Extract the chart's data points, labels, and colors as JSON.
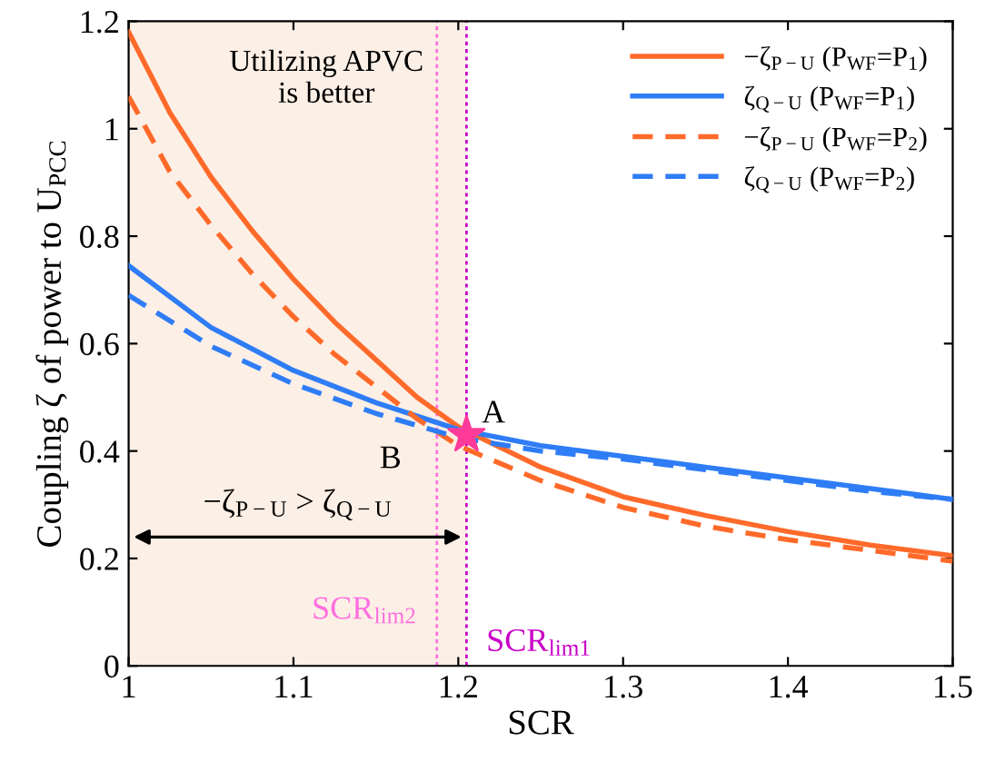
{
  "chart_data": {
    "type": "line",
    "xlabel": "SCR",
    "ylabel": "Coupling ζ of power to U$_{PCC}$",
    "xlim": [
      1,
      1.5
    ],
    "ylim": [
      0,
      1.2
    ],
    "xticks": [
      1,
      1.1,
      1.2,
      1.3,
      1.4,
      1.5
    ],
    "yticks": [
      0,
      0.2,
      0.4,
      0.6,
      0.8,
      1,
      1.2
    ],
    "grid": false,
    "legend": "top right",
    "series": [
      {
        "name": "−ζ$_{P−U}$ (P$_{WF}$=P$_{1}$)",
        "color": "#ff6a2a",
        "line_style": "solid",
        "x": [
          1.0,
          1.025,
          1.05,
          1.075,
          1.1,
          1.125,
          1.15,
          1.175,
          1.2,
          1.25,
          1.3,
          1.35,
          1.4,
          1.45,
          1.5
        ],
        "values": [
          1.18,
          1.03,
          0.91,
          0.81,
          0.72,
          0.64,
          0.57,
          0.5,
          0.445,
          0.37,
          0.315,
          0.28,
          0.25,
          0.225,
          0.205
        ]
      },
      {
        "name": "ζ$_{Q−U}$ (P$_{WF}$=P$_{1}$)",
        "color": "#2f7df6",
        "line_style": "solid",
        "x": [
          1.0,
          1.05,
          1.1,
          1.15,
          1.2,
          1.25,
          1.3,
          1.35,
          1.4,
          1.45,
          1.5
        ],
        "values": [
          0.745,
          0.63,
          0.55,
          0.49,
          0.44,
          0.41,
          0.39,
          0.37,
          0.35,
          0.33,
          0.31
        ]
      },
      {
        "name": "−ζ$_{P−U}$ (P$_{WF}$=P$_{2}$)",
        "color": "#ff6a2a",
        "line_style": "dashed",
        "x": [
          1.0,
          1.025,
          1.05,
          1.075,
          1.1,
          1.125,
          1.15,
          1.175,
          1.2,
          1.25,
          1.3,
          1.35,
          1.4,
          1.45,
          1.5
        ],
        "values": [
          1.06,
          0.92,
          0.82,
          0.73,
          0.65,
          0.58,
          0.52,
          0.46,
          0.41,
          0.345,
          0.295,
          0.26,
          0.235,
          0.215,
          0.195
        ]
      },
      {
        "name": "ζ$_{Q−U}$ (P$_{WF}$=P$_{2}$)",
        "color": "#2f7df6",
        "line_style": "dashed",
        "x": [
          1.0,
          1.05,
          1.1,
          1.15,
          1.2,
          1.25,
          1.3,
          1.35,
          1.4,
          1.45,
          1.5
        ],
        "values": [
          0.69,
          0.595,
          0.525,
          0.47,
          0.425,
          0.4,
          0.385,
          0.365,
          0.345,
          0.325,
          0.31
        ]
      },
      {
        "type": "scatter",
        "marker": "star",
        "color": "#ff3b9a",
        "x": [
          1.205
        ],
        "values": [
          0.43
        ]
      }
    ],
    "ref_lines": [
      {
        "axis": "x",
        "value": 1.205,
        "label": "SCR$_{lim1}$",
        "color": "#c800c8",
        "line_style": "dotted"
      },
      {
        "axis": "x",
        "value": 1.187,
        "label": "SCR$_{lim2}$",
        "color": "#ff6ee0",
        "line_style": "dotted"
      }
    ],
    "bands": [
      {
        "axis": "x",
        "from": 1,
        "to": 1.205,
        "label": "−ζ$_{P−U}$ > ζ$_{Q−U}$",
        "color": "#fcefe6"
      }
    ],
    "annotations": [
      "Utilizing APVC\nis better",
      {
        "text": "A",
        "x": 1.205,
        "y": 0.43
      },
      {
        "text": "B",
        "x": 1.187,
        "y": 0.43
      }
    ]
  }
}
